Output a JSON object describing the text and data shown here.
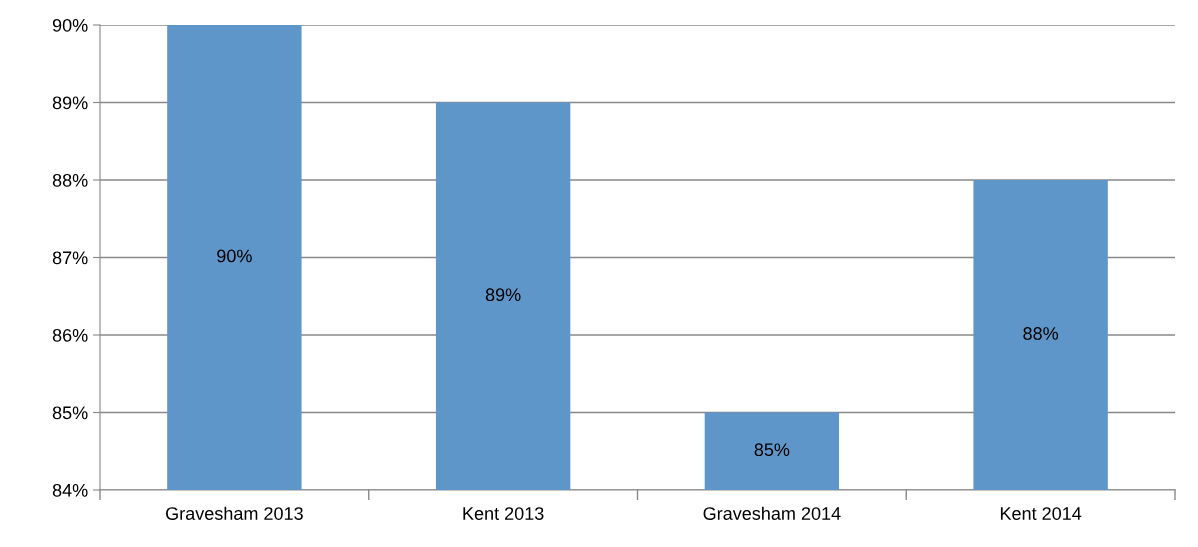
{
  "chart_data": {
    "type": "bar",
    "categories": [
      "Gravesham 2013",
      "Kent 2013",
      "Gravesham 2014",
      "Kent 2014"
    ],
    "values": [
      90,
      89,
      85,
      88
    ],
    "value_labels": [
      "90%",
      "89%",
      "85%",
      "88%"
    ],
    "color": "#5f96c9",
    "ylim": [
      84,
      90
    ],
    "yticks": [
      {
        "value": 84,
        "label": "84%"
      },
      {
        "value": 85,
        "label": "85%"
      },
      {
        "value": 86,
        "label": "86%"
      },
      {
        "value": 87,
        "label": "87%"
      },
      {
        "value": 88,
        "label": "88%"
      },
      {
        "value": 89,
        "label": "89%"
      },
      {
        "value": 90,
        "label": "90%"
      }
    ],
    "grid": "y"
  }
}
